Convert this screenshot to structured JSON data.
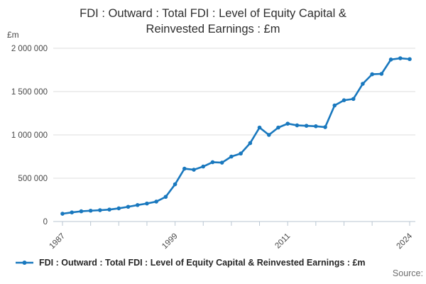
{
  "header": {
    "title": "FDI : Outward : Total FDI : Level of Equity Capital & Reinvested Earnings : £m"
  },
  "chart_data": {
    "type": "line",
    "title": "FDI : Outward : Total FDI : Level of Equity Capital & Reinvested Earnings : £m",
    "unit_label": "£m",
    "x": [
      1987,
      1988,
      1989,
      1990,
      1991,
      1992,
      1993,
      1994,
      1995,
      1996,
      1997,
      1998,
      1999,
      2000,
      2001,
      2002,
      2003,
      2004,
      2005,
      2006,
      2007,
      2008,
      2009,
      2010,
      2011,
      2012,
      2013,
      2014,
      2015,
      2016,
      2017,
      2018,
      2019,
      2020,
      2021,
      2022,
      2023,
      2024
    ],
    "series": [
      {
        "name": "FDI : Outward : Total FDI : Level of Equity Capital & Reinvested Earnings : £m",
        "values": [
          90000,
          105000,
          118000,
          125000,
          131000,
          138000,
          152000,
          170000,
          190000,
          208000,
          230000,
          285000,
          430000,
          610000,
          598000,
          635000,
          685000,
          680000,
          750000,
          785000,
          905000,
          1085000,
          1000000,
          1085000,
          1130000,
          1110000,
          1105000,
          1100000,
          1090000,
          1340000,
          1400000,
          1415000,
          1590000,
          1700000,
          1705000,
          1870000,
          1885000,
          1875000
        ]
      }
    ],
    "xlim": [
      1987,
      2024
    ],
    "ylim": [
      0,
      2000000
    ],
    "y_ticks": [
      0,
      500000,
      1000000,
      1500000,
      2000000
    ],
    "y_tick_labels": [
      "0",
      "500 000",
      "1 000 000",
      "1 500 000",
      "2 000 000"
    ],
    "x_tick_years": [
      1987,
      1990,
      1993,
      1996,
      1999,
      2002,
      2005,
      2008,
      2011,
      2014,
      2017,
      2020,
      2024
    ],
    "x_labeled_years": [
      1987,
      1999,
      2011,
      2024
    ],
    "grid": "horizontal",
    "legend_position": "bottom-left",
    "marker": "circle"
  },
  "legend": {
    "label": "FDI : Outward : Total FDI : Level of Equity Capital & Reinvested Earnings : £m"
  },
  "footer": {
    "source_label": "Source:"
  },
  "colors": {
    "line": "#1978be",
    "grid": "#dcdcdc",
    "axis": "#b9c6d2",
    "tick_text": "#474747",
    "title_text": "#2e2e2e"
  }
}
